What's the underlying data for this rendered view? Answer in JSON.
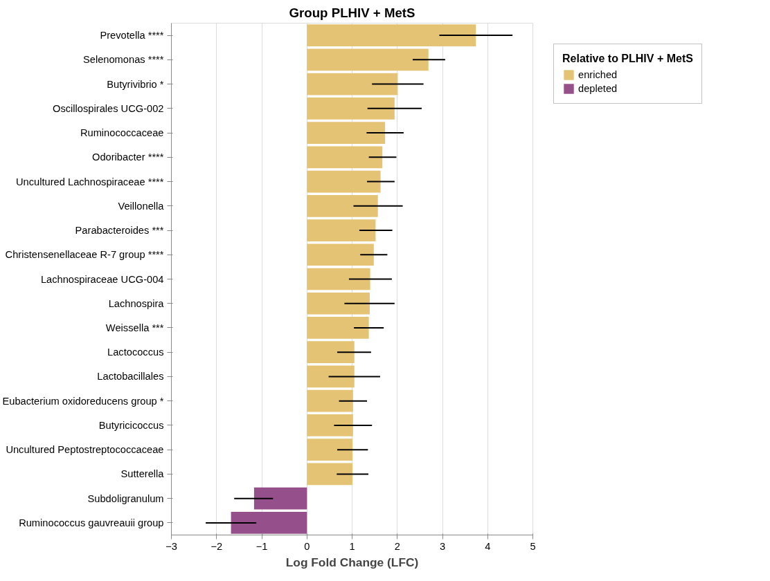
{
  "chart_data": {
    "type": "bar",
    "orientation": "horizontal",
    "title": "Group PLHIV + MetS",
    "xlabel": "Log Fold Change (LFC)",
    "legend_title": "Relative to PLHIV + MetS",
    "categories": [
      "Prevotella ****",
      "Selenomonas ****",
      "Butyrivibrio *",
      "Oscillospirales UCG-002",
      "Ruminococcaceae",
      "Odoribacter ****",
      "Uncultured Lachnospiraceae ****",
      "Veillonella",
      "Parabacteroides ***",
      "Christensenellaceae R-7 group ****",
      "Lachnospiraceae UCG-004",
      "Lachnospira",
      "Weissella ***",
      "Lactococcus",
      "Lactobacillales",
      "Eubacterium oxidoreducens group *",
      "Butyricicoccus",
      "Uncultured Peptostreptococcaceae",
      "Sutterella",
      "Subdoligranulum",
      "Ruminococcus gauvreauii group"
    ],
    "series": [
      {
        "name": "enriched",
        "color": "#e5c374",
        "values": [
          3.74,
          2.69,
          2.01,
          1.94,
          1.73,
          1.67,
          1.63,
          1.57,
          1.52,
          1.48,
          1.4,
          1.39,
          1.37,
          1.05,
          1.05,
          1.02,
          1.02,
          1.01,
          1.01,
          null,
          null
        ],
        "errors": [
          [
            2.93,
            4.55
          ],
          [
            2.34,
            3.06
          ],
          [
            1.44,
            2.58
          ],
          [
            1.34,
            2.54
          ],
          [
            1.32,
            2.14
          ],
          [
            1.37,
            1.98
          ],
          [
            1.33,
            1.94
          ],
          [
            1.03,
            2.12
          ],
          [
            1.16,
            1.89
          ],
          [
            1.18,
            1.78
          ],
          [
            0.93,
            1.88
          ],
          [
            0.83,
            1.94
          ],
          [
            1.04,
            1.7
          ],
          [
            0.67,
            1.42
          ],
          [
            0.48,
            1.62
          ],
          [
            0.71,
            1.33
          ],
          [
            0.6,
            1.44
          ],
          [
            0.67,
            1.35
          ],
          [
            0.66,
            1.36
          ],
          null,
          null
        ]
      },
      {
        "name": "depleted",
        "color": "#954f8a",
        "values": [
          null,
          null,
          null,
          null,
          null,
          null,
          null,
          null,
          null,
          null,
          null,
          null,
          null,
          null,
          null,
          null,
          null,
          null,
          null,
          -1.17,
          -1.68
        ],
        "errors": [
          null,
          null,
          null,
          null,
          null,
          null,
          null,
          null,
          null,
          null,
          null,
          null,
          null,
          null,
          null,
          null,
          null,
          null,
          null,
          [
            -1.61,
            -0.75
          ],
          [
            -2.24,
            -1.12
          ]
        ]
      }
    ],
    "xlim": [
      -3,
      5
    ],
    "xticks": [
      -3,
      -2,
      -1,
      0,
      1,
      2,
      3,
      4,
      5
    ],
    "grid": "x",
    "legend": "top right"
  }
}
